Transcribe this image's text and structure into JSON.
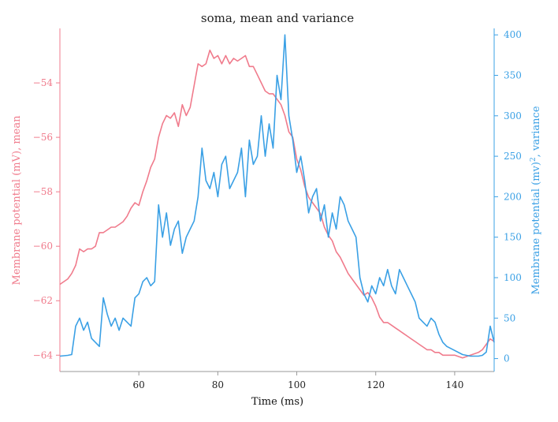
{
  "chart_data": {
    "type": "line",
    "title": "soma, mean and variance",
    "xlabel": "Time (ms)",
    "ylabel_left": "Membrane potential (mV), mean",
    "ylabel_right_base": "Membrane potential (mv)",
    "ylabel_right_sup": "2",
    "ylabel_right_tail": ", variance",
    "xlim": [
      40,
      150
    ],
    "ylim_left": [
      -64.6,
      -52.0
    ],
    "ylim_right": [
      -16,
      408
    ],
    "xticks": [
      60,
      80,
      100,
      120,
      140
    ],
    "yticks_left": [
      -54,
      -56,
      -58,
      -60,
      -62,
      -64
    ],
    "yticks_right": [
      0,
      50,
      100,
      150,
      200,
      250,
      300,
      350,
      400
    ],
    "grid": false,
    "colors": {
      "mean": "#f07b8c",
      "variance": "#3aa0e5",
      "spine": "#999999"
    },
    "series": [
      {
        "axis": "left",
        "color": "#f07b8c",
        "x": [
          40,
          42,
          43,
          44,
          45,
          46,
          47,
          48,
          49,
          50,
          51,
          52,
          53,
          54,
          55,
          56,
          57,
          58,
          59,
          60,
          61,
          62,
          63,
          64,
          65,
          66,
          67,
          68,
          69,
          70,
          71,
          72,
          73,
          74,
          75,
          76,
          77,
          78,
          79,
          80,
          81,
          82,
          83,
          84,
          85,
          86,
          87,
          88,
          89,
          90,
          91,
          92,
          93,
          94,
          95,
          96,
          97,
          98,
          99,
          100,
          101,
          102,
          103,
          104,
          105,
          106,
          107,
          108,
          109,
          110,
          111,
          112,
          113,
          114,
          115,
          116,
          117,
          118,
          119,
          120,
          121,
          122,
          123,
          124,
          125,
          126,
          127,
          128,
          129,
          130,
          131,
          132,
          133,
          134,
          135,
          136,
          137,
          138,
          140,
          142,
          144,
          146,
          147,
          148,
          149,
          150
        ],
        "y": [
          -61.4,
          -61.2,
          -61.0,
          -60.7,
          -60.1,
          -60.2,
          -60.1,
          -60.1,
          -60.0,
          -59.5,
          -59.5,
          -59.4,
          -59.3,
          -59.3,
          -59.2,
          -59.1,
          -58.9,
          -58.6,
          -58.4,
          -58.5,
          -58.0,
          -57.6,
          -57.1,
          -56.8,
          -56.0,
          -55.5,
          -55.2,
          -55.3,
          -55.1,
          -55.6,
          -54.8,
          -55.2,
          -54.9,
          -54.1,
          -53.3,
          -53.4,
          -53.3,
          -52.8,
          -53.1,
          -53.0,
          -53.3,
          -53.0,
          -53.3,
          -53.1,
          -53.2,
          -53.1,
          -53.0,
          -53.4,
          -53.4,
          -53.7,
          -54.0,
          -54.3,
          -54.4,
          -54.4,
          -54.6,
          -54.8,
          -55.2,
          -55.8,
          -56.0,
          -56.8,
          -57.2,
          -57.8,
          -58.2,
          -58.4,
          -58.6,
          -58.8,
          -59.3,
          -59.6,
          -59.8,
          -60.2,
          -60.4,
          -60.7,
          -61.0,
          -61.2,
          -61.4,
          -61.6,
          -61.8,
          -61.7,
          -61.9,
          -62.2,
          -62.6,
          -62.8,
          -62.8,
          -62.9,
          -63.0,
          -63.1,
          -63.2,
          -63.3,
          -63.4,
          -63.5,
          -63.6,
          -63.7,
          -63.8,
          -63.8,
          -63.9,
          -63.9,
          -64.0,
          -64.0,
          -64.0,
          -64.1,
          -64.0,
          -63.9,
          -63.8,
          -63.6,
          -63.4,
          -63.5
        ]
      },
      {
        "axis": "right",
        "color": "#3aa0e5",
        "x": [
          40,
          42,
          43,
          44,
          45,
          46,
          47,
          48,
          49,
          50,
          51,
          52,
          53,
          54,
          55,
          56,
          57,
          58,
          59,
          60,
          61,
          62,
          63,
          64,
          65,
          66,
          67,
          68,
          69,
          70,
          71,
          72,
          73,
          74,
          75,
          76,
          77,
          78,
          79,
          80,
          81,
          82,
          83,
          84,
          85,
          86,
          87,
          88,
          89,
          90,
          91,
          92,
          93,
          94,
          95,
          96,
          97,
          98,
          99,
          100,
          101,
          102,
          103,
          104,
          105,
          106,
          107,
          108,
          109,
          110,
          111,
          112,
          113,
          114,
          115,
          116,
          117,
          118,
          119,
          120,
          121,
          122,
          123,
          124,
          125,
          126,
          127,
          128,
          129,
          130,
          131,
          132,
          133,
          134,
          135,
          136,
          137,
          138,
          140,
          142,
          144,
          146,
          147,
          148,
          149,
          150
        ],
        "y": [
          3,
          4,
          5,
          40,
          50,
          35,
          45,
          25,
          20,
          15,
          75,
          55,
          40,
          50,
          35,
          50,
          45,
          40,
          75,
          80,
          95,
          100,
          90,
          95,
          190,
          150,
          180,
          140,
          160,
          170,
          130,
          150,
          160,
          170,
          200,
          260,
          220,
          210,
          230,
          200,
          240,
          250,
          210,
          220,
          230,
          260,
          200,
          270,
          240,
          250,
          300,
          250,
          290,
          260,
          350,
          320,
          400,
          300,
          270,
          230,
          250,
          220,
          180,
          200,
          210,
          170,
          190,
          150,
          180,
          160,
          200,
          190,
          170,
          160,
          150,
          100,
          80,
          70,
          90,
          80,
          100,
          90,
          110,
          90,
          80,
          110,
          100,
          90,
          80,
          70,
          50,
          45,
          40,
          50,
          45,
          30,
          20,
          15,
          10,
          5,
          3,
          3,
          4,
          8,
          40,
          20
        ]
      }
    ]
  }
}
